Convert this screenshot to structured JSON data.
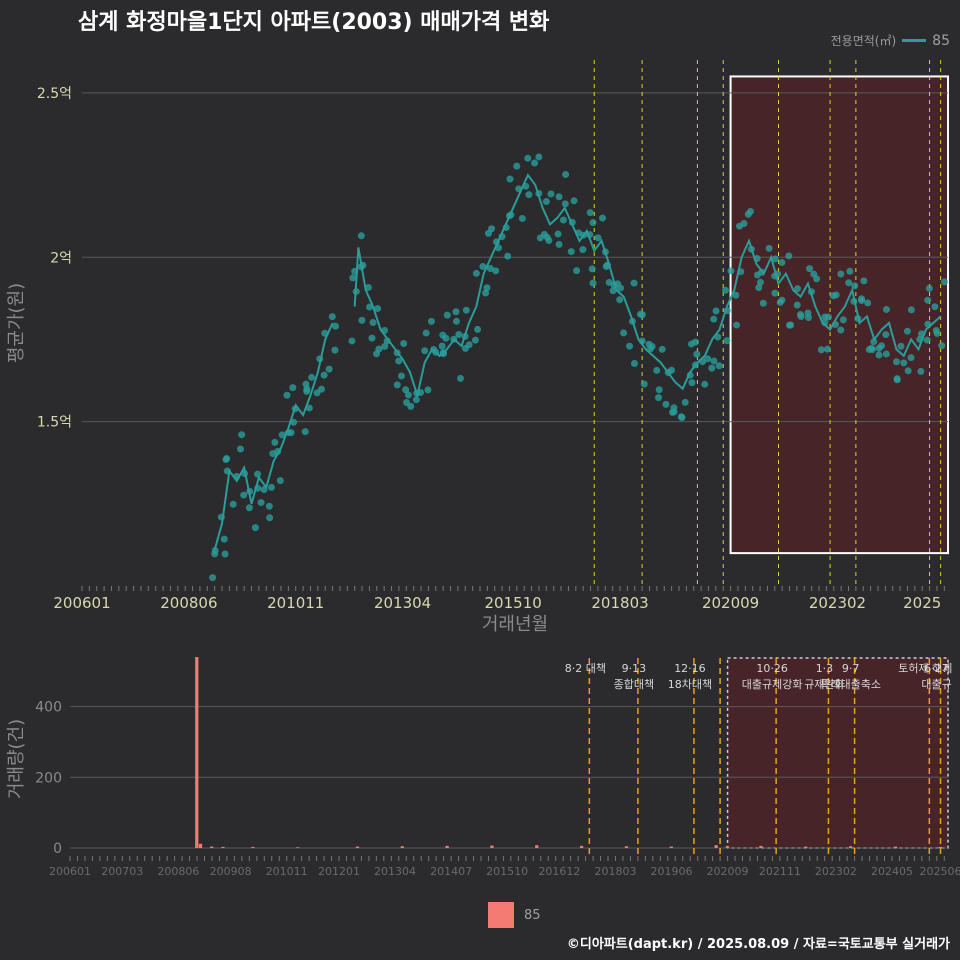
{
  "title": "삼계 화정마을1단지 아파트(2003) 매매가격 변화",
  "legend": {
    "title": "전용면적(㎡)",
    "item": "85",
    "line_color": "#2a9d9a",
    "bar_color": "#f47a74"
  },
  "footer": "©디아파트(dapt.kr) / 2025.08.09 / 자료=국토교통부 실거래가",
  "chart_data": [
    {
      "type": "line",
      "xlabel": "거래년월",
      "ylabel": "평균가(원)",
      "x_ticks": [
        "200601",
        "200806",
        "201011",
        "201304",
        "201510",
        "201803",
        "202009",
        "202302",
        "2025"
      ],
      "y_ticks": [
        {
          "v": 1.5,
          "label": "1.5억"
        },
        {
          "v": 2.0,
          "label": "2억"
        },
        {
          "v": 2.5,
          "label": "2.5억"
        }
      ],
      "ylim": [
        1.0,
        2.6
      ],
      "unit": "억",
      "series": [
        {
          "name": "85",
          "points": [
            [
              "2009-01",
              1.11
            ],
            [
              "2009-03",
              1.19
            ],
            [
              "2009-05",
              1.35
            ],
            [
              "2009-07",
              1.32
            ],
            [
              "2009-09",
              1.36
            ],
            [
              "2009-11",
              1.25
            ],
            [
              "2010-01",
              1.33
            ],
            [
              "2010-03",
              1.3
            ],
            [
              "2010-05",
              1.38
            ],
            [
              "2010-07",
              1.42
            ],
            [
              "2010-09",
              1.48
            ],
            [
              "2010-11",
              1.55
            ],
            [
              "2011-01",
              1.52
            ],
            [
              "2011-03",
              1.58
            ],
            [
              "2011-05",
              1.65
            ],
            [
              "2011-07",
              1.75
            ],
            [
              "2011-09",
              1.8
            ],
            [
              "2012-03",
              1.85
            ],
            [
              "2012-04",
              2.03
            ],
            [
              "2012-06",
              1.9
            ],
            [
              "2012-08",
              1.85
            ],
            [
              "2012-10",
              1.78
            ],
            [
              "2012-12",
              1.75
            ],
            [
              "2013-02",
              1.72
            ],
            [
              "2013-04",
              1.69
            ],
            [
              "2013-06",
              1.65
            ],
            [
              "2013-08",
              1.58
            ],
            [
              "2013-10",
              1.68
            ],
            [
              "2013-12",
              1.72
            ],
            [
              "2014-02",
              1.7
            ],
            [
              "2014-04",
              1.72
            ],
            [
              "2014-06",
              1.75
            ],
            [
              "2014-08",
              1.73
            ],
            [
              "2014-10",
              1.8
            ],
            [
              "2014-12",
              1.85
            ],
            [
              "2015-02",
              1.95
            ],
            [
              "2015-04",
              2.0
            ],
            [
              "2015-06",
              2.05
            ],
            [
              "2015-08",
              2.1
            ],
            [
              "2015-10",
              2.15
            ],
            [
              "2015-12",
              2.2
            ],
            [
              "2016-02",
              2.25
            ],
            [
              "2016-04",
              2.22
            ],
            [
              "2016-06",
              2.15
            ],
            [
              "2016-08",
              2.1
            ],
            [
              "2016-10",
              2.12
            ],
            [
              "2016-12",
              2.15
            ],
            [
              "2017-02",
              2.1
            ],
            [
              "2017-04",
              2.05
            ],
            [
              "2017-06",
              2.08
            ],
            [
              "2017-08",
              2.02
            ],
            [
              "2017-10",
              2.05
            ],
            [
              "2017-12",
              1.98
            ],
            [
              "2018-02",
              1.9
            ],
            [
              "2018-04",
              1.88
            ],
            [
              "2018-06",
              1.82
            ],
            [
              "2018-08",
              1.75
            ],
            [
              "2018-10",
              1.72
            ],
            [
              "2018-12",
              1.7
            ],
            [
              "2019-02",
              1.68
            ],
            [
              "2019-04",
              1.65
            ],
            [
              "2019-06",
              1.62
            ],
            [
              "2019-08",
              1.6
            ],
            [
              "2019-10",
              1.65
            ],
            [
              "2019-12",
              1.68
            ],
            [
              "2020-02",
              1.7
            ],
            [
              "2020-04",
              1.75
            ],
            [
              "2020-06",
              1.78
            ],
            [
              "2020-08",
              1.85
            ],
            [
              "2020-10",
              1.9
            ],
            [
              "2020-12",
              2.0
            ],
            [
              "2021-02",
              2.05
            ],
            [
              "2021-04",
              1.98
            ],
            [
              "2021-06",
              1.95
            ],
            [
              "2021-08",
              2.0
            ],
            [
              "2021-10",
              1.92
            ],
            [
              "2021-12",
              1.95
            ],
            [
              "2022-02",
              1.9
            ],
            [
              "2022-04",
              1.88
            ],
            [
              "2022-06",
              1.92
            ],
            [
              "2022-08",
              1.85
            ],
            [
              "2022-10",
              1.8
            ],
            [
              "2022-12",
              1.78
            ],
            [
              "2023-02",
              1.82
            ],
            [
              "2023-04",
              1.85
            ],
            [
              "2023-06",
              1.9
            ],
            [
              "2023-08",
              1.8
            ],
            [
              "2023-10",
              1.82
            ],
            [
              "2023-12",
              1.75
            ],
            [
              "2024-02",
              1.78
            ],
            [
              "2024-04",
              1.8
            ],
            [
              "2024-06",
              1.72
            ],
            [
              "2024-08",
              1.7
            ],
            [
              "2024-10",
              1.75
            ],
            [
              "2024-12",
              1.72
            ],
            [
              "2025-02",
              1.78
            ],
            [
              "2025-04",
              1.8
            ],
            [
              "2025-06",
              1.82
            ]
          ]
        }
      ],
      "highlight_from": "2020-09",
      "policy_lines": [
        "2017-08",
        "2018-09",
        "2019-12",
        "2020-07",
        "2021-10",
        "2022-12",
        "2023-07",
        "2025-03",
        "2025-06"
      ]
    },
    {
      "type": "bar",
      "xlabel": "",
      "ylabel": "거래량(건)",
      "x_ticks": [
        "200601",
        "200703",
        "200806",
        "200908",
        "201011",
        "201201",
        "201304",
        "201407",
        "201510",
        "201612",
        "201803",
        "201906",
        "202009",
        "202111",
        "202302",
        "202405",
        "202506"
      ],
      "y_ticks": [
        0,
        200,
        400
      ],
      "ylim": [
        0,
        560
      ],
      "series": [
        {
          "name": "85",
          "values": [
            [
              "2008-11",
              540
            ],
            [
              "2008-12",
              12
            ],
            [
              "2009-03",
              4
            ],
            [
              "2009-06",
              3
            ],
            [
              "2010-02",
              3
            ],
            [
              "2011-02",
              2
            ],
            [
              "2012-06",
              4
            ],
            [
              "2013-06",
              5
            ],
            [
              "2014-06",
              6
            ],
            [
              "2015-06",
              7
            ],
            [
              "2016-06",
              8
            ],
            [
              "2017-06",
              6
            ],
            [
              "2018-06",
              5
            ],
            [
              "2019-06",
              4
            ],
            [
              "2020-06",
              8
            ],
            [
              "2020-09",
              5
            ],
            [
              "2021-06",
              6
            ],
            [
              "2022-06",
              4
            ],
            [
              "2023-06",
              5
            ],
            [
              "2024-06",
              4
            ],
            [
              "2025-06",
              3
            ]
          ]
        }
      ],
      "annotations": [
        {
          "date": "2017-08",
          "lines": [
            "8·2 대책"
          ]
        },
        {
          "date": "2018-09",
          "lines": [
            "9·13",
            "종합대책"
          ]
        },
        {
          "date": "2019-12",
          "lines": [
            "12·16",
            "18차대책"
          ]
        },
        {
          "date": "2020-07",
          "lines": []
        },
        {
          "date": "2021-10",
          "lines": [
            "10·26",
            "대출규제강화"
          ]
        },
        {
          "date": "2022-12",
          "lines": [
            "1·3",
            "규제완화"
          ]
        },
        {
          "date": "2023-07",
          "lines": [
            "9·7",
            "특례대출축소"
          ]
        },
        {
          "date": "2025-03",
          "lines": [
            "토허제 해제"
          ]
        },
        {
          "date": "2025-06",
          "lines": [
            "6·27",
            "대출규"
          ]
        }
      ],
      "highlight_from": "2020-09"
    }
  ]
}
